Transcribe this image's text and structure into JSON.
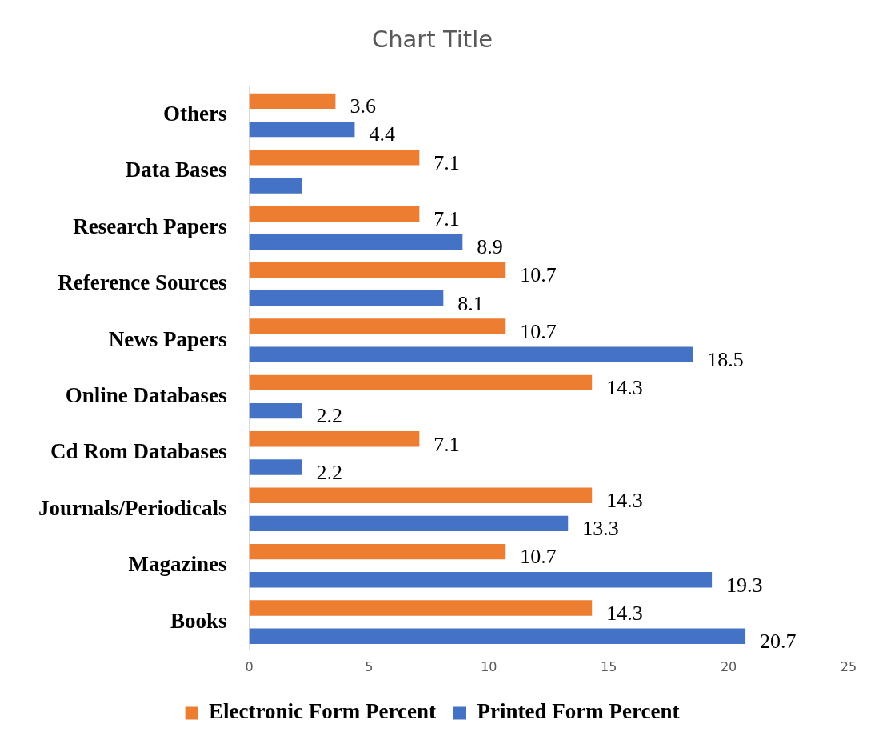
{
  "chart_data": {
    "type": "bar",
    "orientation": "horizontal",
    "title": "Chart Title",
    "categories": [
      "Others",
      "Data Bases",
      "Research Papers",
      "Reference Sources",
      "News Papers",
      "Online Databases",
      "Cd Rom Databases",
      "Journals/Periodicals",
      "Magazines",
      "Books"
    ],
    "series": [
      {
        "name": "Electronic Form Percent",
        "color": "#ed7d31",
        "values": [
          3.6,
          7.1,
          7.1,
          10.7,
          10.7,
          14.3,
          7.1,
          14.3,
          10.7,
          14.3
        ],
        "value_labels": [
          "3.6",
          "7.1",
          "7.1",
          "10.7",
          "10.7",
          "14.3",
          "7.1",
          "14.3",
          "10.7",
          "14.3"
        ]
      },
      {
        "name": "Printed Form Percent",
        "color": "#4472c4",
        "values": [
          4.4,
          2.2,
          8.9,
          8.1,
          18.5,
          2.2,
          2.2,
          13.3,
          19.3,
          20.7
        ],
        "value_labels": [
          "4.4",
          null,
          "8.9",
          "8.1",
          "18.5",
          "2.2",
          "2.2",
          "13.3",
          "19.3",
          "20.7"
        ]
      }
    ],
    "xlim": [
      0,
      25
    ],
    "xticks": [
      0,
      5,
      10,
      15,
      20,
      25
    ],
    "grid": false,
    "legend": "bottom"
  }
}
